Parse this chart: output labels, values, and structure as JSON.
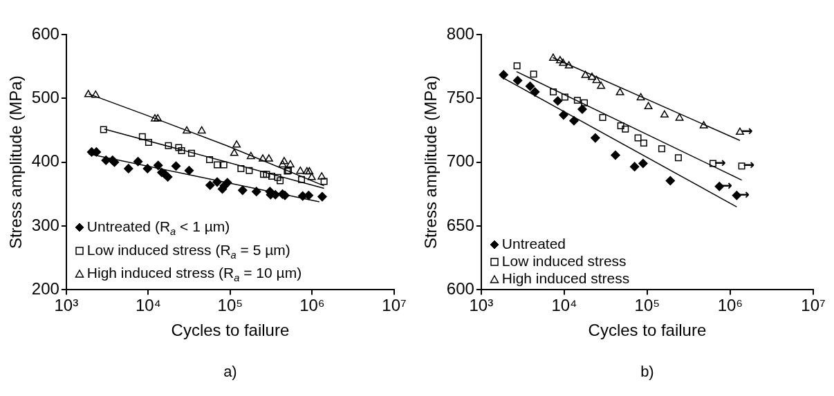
{
  "chart_data": [
    {
      "type": "scatter",
      "xlabel": "Cycles to failure",
      "ylabel": "Stress amplitude (MPa)",
      "log": "x",
      "grid": false,
      "legend": "bottom left",
      "xlim": [
        1000,
        10000000
      ],
      "ylim": [
        200,
        600
      ],
      "xticks": [
        {
          "value": 1000,
          "label": "10³"
        },
        {
          "value": 10000,
          "label": "10⁴"
        },
        {
          "value": 100000,
          "label": "10⁵"
        },
        {
          "value": 1000000,
          "label": "10⁶"
        },
        {
          "value": 10000000,
          "label": "10⁷"
        }
      ],
      "yticks": [
        200,
        300,
        400,
        500,
        600
      ],
      "annotations": [
        "a)"
      ],
      "series": [
        {
          "name": "Untreated (R$_{a}$ < 1 µm)",
          "color": "#000000",
          "marker": "diamond",
          "x": [
            2040,
            2330,
            3050,
            3670,
            3870,
            5740,
            7500,
            9800,
            13200,
            14600,
            16000,
            17300,
            21800,
            31500,
            56800,
            69300,
            80200,
            84700,
            92300,
            141500,
            208500,
            305000,
            311000,
            355500,
            434500,
            464500,
            766000,
            905000,
            1325000
          ],
          "values": [
            416,
            416,
            403,
            403,
            400,
            390,
            401,
            390,
            395,
            384,
            381,
            377,
            394,
            387,
            364,
            369,
            358,
            363,
            368,
            356,
            354,
            354,
            349,
            349,
            350,
            348,
            347,
            348,
            346
          ]
        },
        {
          "name": "Low induced stress (R$_{a}$ = 5 µm)",
          "color": "#000000",
          "marker": "square",
          "x": [
            2850,
            8470,
            10100,
            17600,
            23500,
            25500,
            33700,
            56000,
            69300,
            83600,
            135000,
            170500,
            254700,
            277600,
            321300,
            379900,
            406200,
            496400,
            513000,
            741000,
            1396000
          ],
          "values": [
            451,
            440,
            431,
            426,
            423,
            418,
            414,
            404,
            396,
            396,
            390,
            387,
            381,
            381,
            378,
            376,
            371,
            386,
            387,
            373,
            370
          ]
        },
        {
          "name": "High induced stress (R$_{a}$ = 10 µm)",
          "color": "#000000",
          "marker": "triangle",
          "x": [
            1860,
            2280,
            12050,
            13060,
            29500,
            44900,
            119700,
            112000,
            178600,
            249600,
            296500,
            455000,
            434500,
            540800,
            716000,
            863000,
            923000,
            986000,
            1306000
          ],
          "values": [
            506,
            505,
            468,
            468,
            449,
            449,
            427,
            414,
            409,
            405,
            405,
            401,
            396,
            396,
            386,
            385,
            385,
            376,
            377
          ]
        },
        {
          "type": "line",
          "color": "#000000",
          "marker": "none",
          "x": [
            1880,
            1222000
          ],
          "values": [
            413,
            338
          ]
        },
        {
          "type": "line",
          "color": "#000000",
          "marker": "none",
          "x": [
            2910,
            1396000
          ],
          "values": [
            452,
            359
          ]
        },
        {
          "type": "line",
          "color": "#000000",
          "marker": "none",
          "x": [
            1880,
            9360,
            90600,
            1396000
          ],
          "values": [
            507,
            474,
            426,
            363
          ]
        }
      ]
    },
    {
      "type": "scatter",
      "xlabel": "Cycles to failure",
      "ylabel": "Stress amplitude (MPa)",
      "log": "x",
      "grid": false,
      "legend": "bottom left",
      "xlim": [
        1000,
        10000000
      ],
      "ylim": [
        600,
        800
      ],
      "xticks": [
        {
          "value": 1000,
          "label": "10³"
        },
        {
          "value": 10000,
          "label": "10⁴"
        },
        {
          "value": 100000,
          "label": "10⁵"
        },
        {
          "value": 1000000,
          "label": "10⁶"
        },
        {
          "value": 10000000,
          "label": "10⁷"
        }
      ],
      "yticks": [
        600,
        650,
        700,
        750,
        800
      ],
      "annotations": [
        "b)",
        {
          "text": "→",
          "x": 740000,
          "y": 681
        },
        {
          "text": "→",
          "x": 1197000,
          "y": 674
        },
        {
          "text": "→",
          "x": 619000,
          "y": 699
        },
        {
          "text": "→",
          "x": 1376000,
          "y": 697
        },
        {
          "text": "→",
          "x": 1309000,
          "y": 723.5
        }
      ],
      "series": [
        {
          "name": "Untreated",
          "color": "#000000",
          "marker": "diamond",
          "x": [
            1860,
            2750,
            3880,
            4440,
            8360,
            9820,
            13100,
            16500,
            23700,
            41400,
            70400,
            89100,
            189600,
            740000,
            1197000
          ],
          "values": [
            768.5,
            764,
            759.5,
            755,
            748,
            737,
            732.5,
            741.5,
            719,
            705.5,
            696.5,
            699,
            685.5,
            681,
            674
          ]
        },
        {
          "name": "Low induced stress",
          "color": "#000000",
          "marker": "square",
          "x": [
            2700,
            4280,
            7390,
            10200,
            14400,
            17500,
            29100,
            48000,
            54500,
            77400,
            90800,
            149600,
            237000,
            619000,
            1376000
          ],
          "values": [
            775.5,
            769,
            755,
            751,
            748.5,
            746.5,
            735,
            728.5,
            726,
            719,
            715,
            710.5,
            703.5,
            699,
            697
          ]
        },
        {
          "name": "High induced stress",
          "color": "#000000",
          "marker": "triangle",
          "x": [
            7360,
            8920,
            9690,
            11400,
            18000,
            21600,
            24500,
            27800,
            47000,
            83600,
            103300,
            161500,
            244700,
            479700,
            1309000
          ],
          "values": [
            781.5,
            779.5,
            777.5,
            775.5,
            768,
            766.5,
            764,
            759.5,
            754.5,
            750.5,
            743.5,
            737,
            734.5,
            728.5,
            723.5
          ]
        },
        {
          "type": "line",
          "color": "#000000",
          "marker": "none",
          "x": [
            1720,
            1197000
          ],
          "values": [
            767,
            665
          ]
        },
        {
          "type": "line",
          "color": "#000000",
          "marker": "none",
          "x": [
            2660,
            1376000
          ],
          "values": [
            771,
            686
          ]
        },
        {
          "type": "line",
          "color": "#000000",
          "marker": "none",
          "x": [
            7260,
            1309000
          ],
          "values": [
            782,
            717
          ]
        }
      ]
    }
  ]
}
